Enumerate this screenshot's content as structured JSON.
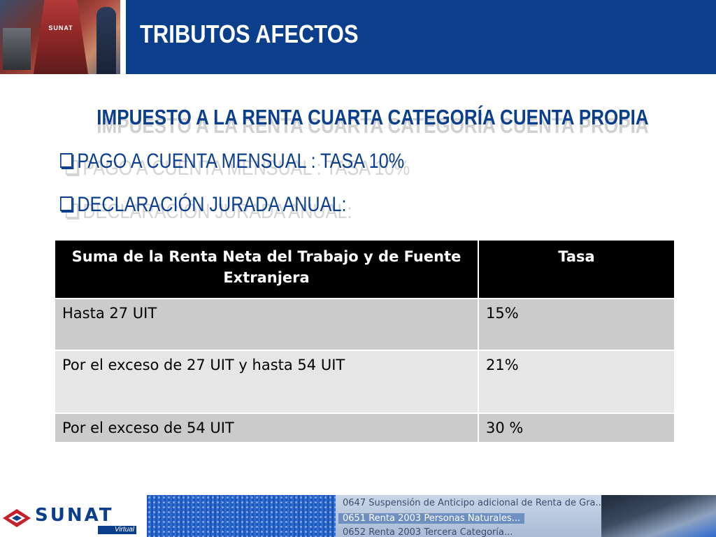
{
  "header": {
    "title": "TRIBUTOS AFECTOS",
    "photo_caption": "SUNAT"
  },
  "main": {
    "subtitle": "IMPUESTO A LA RENTA CUARTA  CATEGORÍA CUENTA  PROPIA",
    "bullets": [
      "PAGO A CUENTA MENSUAL : TASA 10%",
      "DECLARACIÓN JURADA  ANUAL:"
    ]
  },
  "table": {
    "headers": [
      "Suma de la Renta Neta del Trabajo y de Fuente Extranjera",
      "Tasa"
    ],
    "rows": [
      [
        "Hasta 27 UIT",
        "15%"
      ],
      [
        "Por el exceso de 27 UIT y hasta 54 UIT",
        "21%"
      ],
      [
        "Por el exceso de 54 UIT",
        "30 %"
      ]
    ]
  },
  "footer": {
    "logo_text": "SUNAT",
    "logo_sub": "Virtual",
    "menu_items": [
      "0647 Suspensión de Anticipo adicional de Renta de Gra...",
      "0651 Renta 2003 Personas Naturales...",
      "0652 Renta 2003 Tercera Categoría..."
    ]
  },
  "colors": {
    "brand_blue": "#0b3f8c",
    "table_header_bg": "#000000",
    "row_dark": "#cbcbcb",
    "row_light": "#e6e6e6"
  }
}
